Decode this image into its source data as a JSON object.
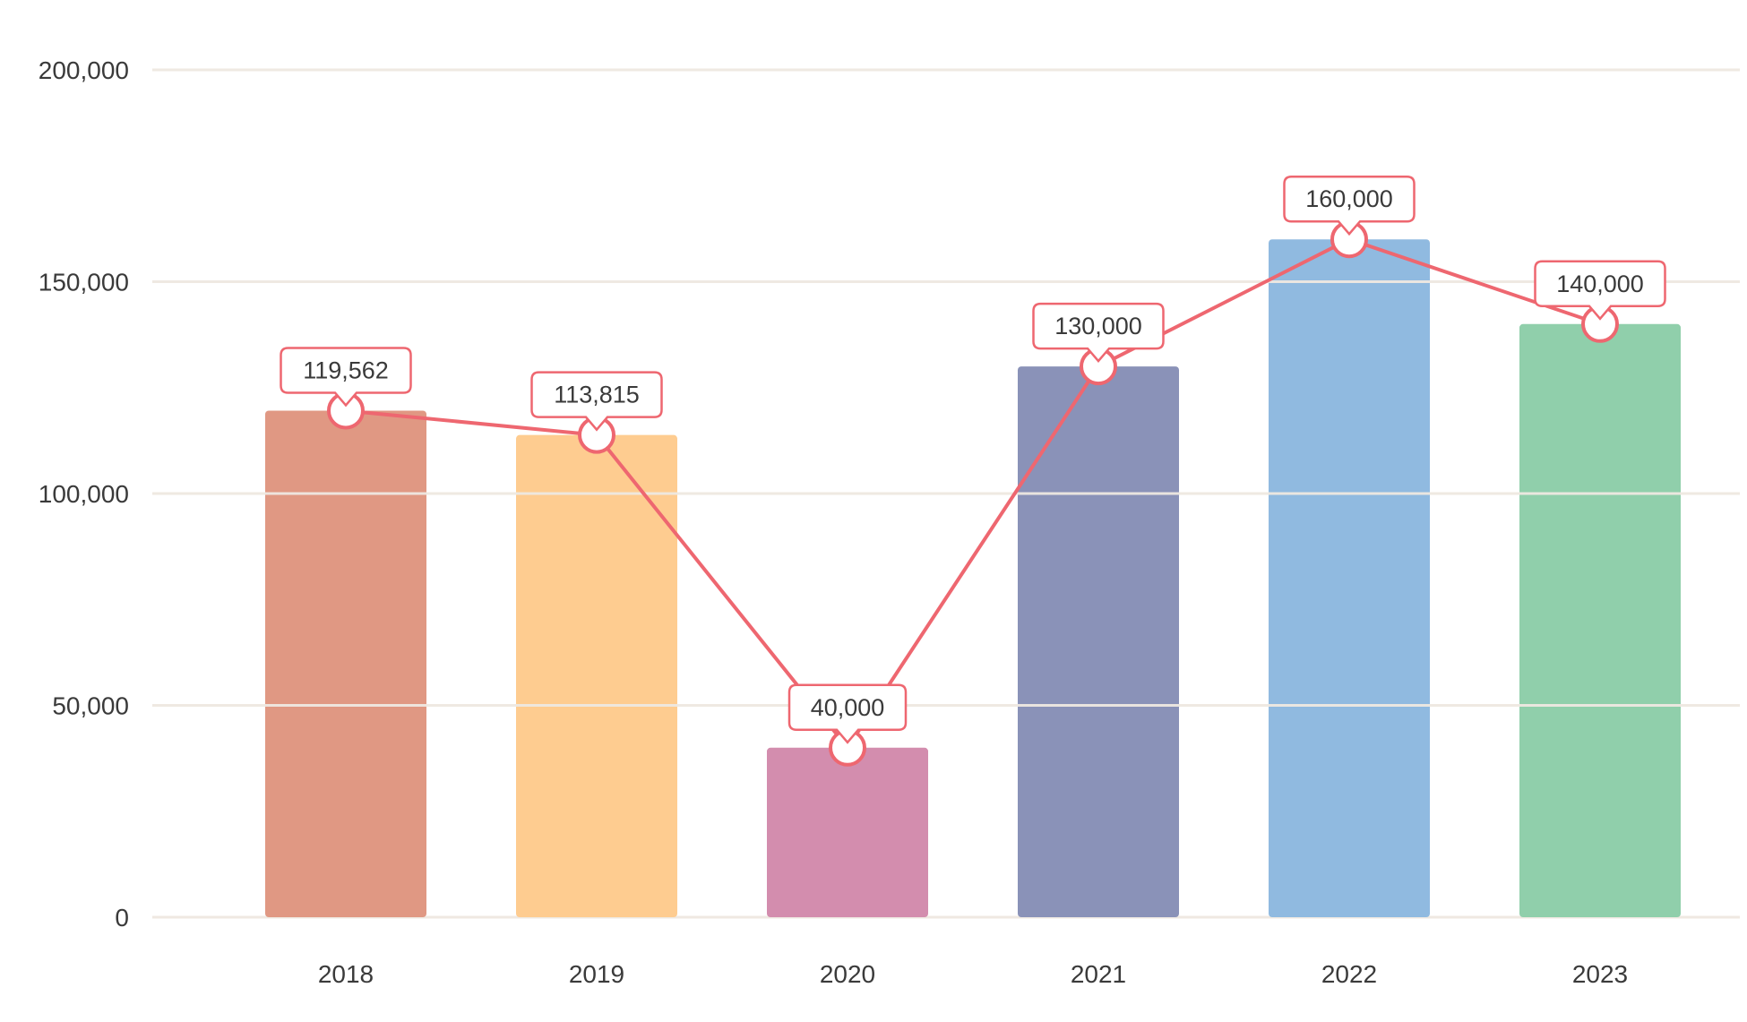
{
  "chart_data": {
    "type": "bar",
    "title": "",
    "xlabel": "",
    "ylabel": "",
    "categories": [
      "2018",
      "2019",
      "2020",
      "2021",
      "2022",
      "2023"
    ],
    "values": [
      119562,
      113815,
      40000,
      130000,
      160000,
      140000
    ],
    "bar_colors": [
      "#e09883",
      "#fecc90",
      "#d38dae",
      "#8a92b8",
      "#90bae0",
      "#90cfab"
    ],
    "line_overlay": {
      "values": [
        119562,
        113815,
        40000,
        130000,
        160000,
        140000
      ],
      "color": "#ee6770"
    },
    "data_labels": [
      "119,562",
      "113,815",
      "40,000",
      "130,000",
      "160,000",
      "140,000"
    ],
    "ylim": [
      0,
      200000
    ],
    "y_ticks": [
      0,
      50000,
      100000,
      150000,
      200000
    ],
    "y_tick_labels": [
      "0",
      "50,000",
      "100,000",
      "150,000",
      "200,000"
    ],
    "grid": true,
    "grid_color": "#efe9e2"
  }
}
